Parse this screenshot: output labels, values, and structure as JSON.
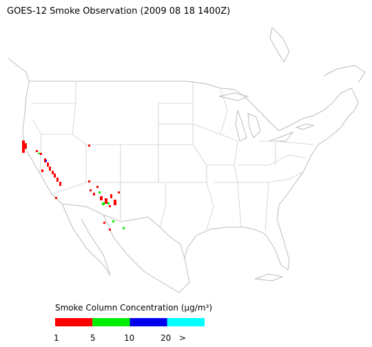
{
  "header": {
    "title": "GOES-12 Smoke Observation (2009 08 18  1400Z)"
  },
  "legend": {
    "title": "Smoke Column Concentration (μg/m³)",
    "colors": [
      "#ff0000",
      "#00ee00",
      "#0000ee",
      "#00ffff"
    ],
    "labels": [
      "1",
      "5",
      "10",
      "20",
      ">"
    ]
  }
}
